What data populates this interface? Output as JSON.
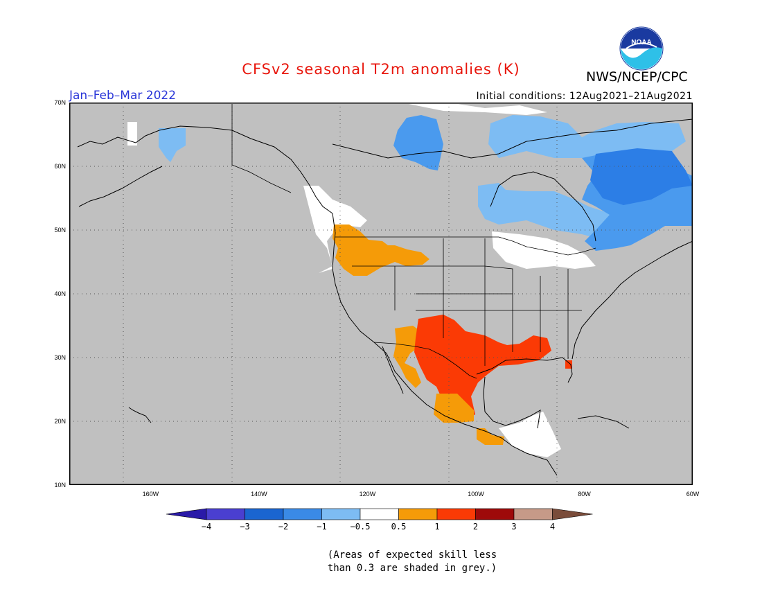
{
  "header": {
    "title": "CFSv2 seasonal T2m anomalies (K)",
    "title_color": "#e8160c",
    "period": "Jan–Feb–Mar 2022",
    "period_color": "#2a36d8",
    "initial_conditions": "Initial conditions: 12Aug2021–21Aug2021",
    "agency": "NWS/NCEP/CPC",
    "logo_text": "NOAA"
  },
  "map": {
    "projection": "latitude-longitude",
    "lon_range": [
      -175,
      -60
    ],
    "lat_range": [
      10,
      70
    ],
    "lat_labels": [
      "70N",
      "60N",
      "50N",
      "40N",
      "30N",
      "20N",
      "10N"
    ],
    "lon_labels": [
      "160W",
      "140W",
      "120W",
      "100W",
      "80W",
      "60W"
    ],
    "lat_ticks": [
      70,
      60,
      50,
      40,
      30,
      20,
      10
    ],
    "lon_ticks": [
      -160,
      -140,
      -120,
      -100,
      -80,
      -60
    ],
    "background_color": "#c0c0c0",
    "grid": "dotted",
    "anomaly_regions": [
      {
        "category": "-3 to -2",
        "color": "#2c7ee6",
        "extent": "Canadian Arctic islands, northern Quebec / Labrador, southern Quebec"
      },
      {
        "category": "-2 to -1",
        "color": "#4a9aee",
        "extent": "Hudson Bay coast, northern Ontario, eastern Canada"
      },
      {
        "category": "-1 to -0.5",
        "color": "#7dbcf3",
        "extent": "Western Alaska, Ontario, Great Lakes region"
      },
      {
        "category": "-0.5 to 0.5",
        "color": "#ffffff",
        "extent": "Pacific Northwest coast, northern Great Lakes, Central America"
      },
      {
        "category": "0.5 to 1",
        "color": "#f59b08",
        "extent": "Northern Rockies, Arizona, Mexico, Central America"
      },
      {
        "category": "1 to 2",
        "color": "#fb3a05",
        "extent": "Texas, Gulf Coast, northern Mexico"
      }
    ]
  },
  "legend": {
    "labels": [
      "−4",
      "−3",
      "−2",
      "−1",
      "−0.5",
      "0.5",
      "1",
      "2",
      "3",
      "4"
    ],
    "colors": [
      "#2a1aa8",
      "#4a3fd0",
      "#1a65d0",
      "#3a8ae6",
      "#7dbcf3",
      "#ffffff",
      "#f59b08",
      "#fb3a05",
      "#9e0a0a",
      "#c69a88",
      "#7a4c3a"
    ]
  },
  "footnote": {
    "line1": "(Areas of expected skill less",
    "line2": "than 0.3 are shaded in grey.)"
  }
}
